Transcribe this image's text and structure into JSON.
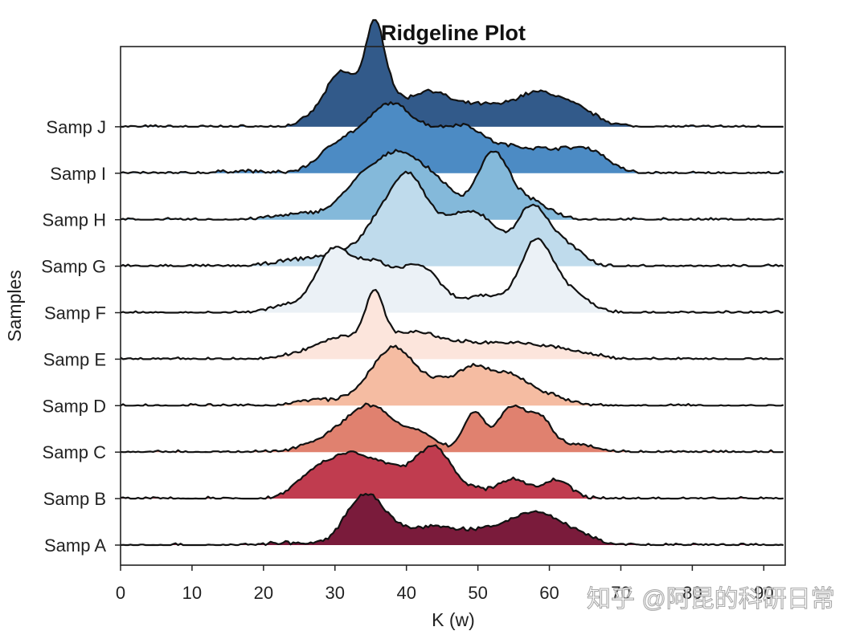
{
  "chart_data": {
    "type": "ridgeline",
    "title": "Ridgeline Plot",
    "xlabel": "K (w)",
    "ylabel": "Samples",
    "xlim": [
      0,
      93
    ],
    "xticks": [
      0,
      10,
      20,
      30,
      40,
      50,
      60,
      70,
      80,
      90
    ],
    "grid": false,
    "legend": "none",
    "series": [
      {
        "name": "Samp A",
        "color": "#7a1b3b",
        "peaks": [
          [
            34,
            1.0,
            2.6
          ],
          [
            38,
            0.25,
            3.0
          ],
          [
            44,
            0.3,
            3.0
          ],
          [
            52,
            0.33,
            4.5
          ],
          [
            58,
            0.52,
            3.0
          ],
          [
            63,
            0.25,
            3.0
          ],
          [
            23,
            0.05,
            2.5
          ]
        ]
      },
      {
        "name": "Samp B",
        "color": "#c03c4f",
        "peaks": [
          [
            31,
            0.82,
            3.5
          ],
          [
            38,
            0.6,
            4.0
          ],
          [
            44,
            0.92,
            2.2
          ],
          [
            49,
            0.2,
            2.5
          ],
          [
            55,
            0.42,
            2.0
          ],
          [
            61,
            0.4,
            2.0
          ],
          [
            26,
            0.25,
            2.0
          ]
        ]
      },
      {
        "name": "Samp C",
        "color": "#e0816f",
        "peaks": [
          [
            35,
            0.95,
            3.2
          ],
          [
            29,
            0.25,
            3.5
          ],
          [
            42,
            0.35,
            2.5
          ],
          [
            49.5,
            0.85,
            1.5
          ],
          [
            54.5,
            0.92,
            1.8
          ],
          [
            58.5,
            0.75,
            1.8
          ],
          [
            64,
            0.18,
            2.5
          ]
        ]
      },
      {
        "name": "Samp D",
        "color": "#f5bca2",
        "peaks": [
          [
            39,
            1.05,
            2.5
          ],
          [
            36,
            0.4,
            2.0
          ],
          [
            45,
            0.5,
            2.5
          ],
          [
            49.5,
            0.65,
            2.0
          ],
          [
            54,
            0.6,
            2.5
          ],
          [
            59,
            0.25,
            3.0
          ],
          [
            27,
            0.12,
            2.5
          ],
          [
            33,
            0.18,
            2.5
          ]
        ]
      },
      {
        "name": "Samp E",
        "color": "#fce5dc",
        "peaks": [
          [
            35.5,
            1.05,
            1.3
          ],
          [
            31,
            0.42,
            3.0
          ],
          [
            40,
            0.5,
            4.0
          ],
          [
            50,
            0.32,
            6.0
          ],
          [
            60,
            0.2,
            5.0
          ],
          [
            26,
            0.12,
            3.0
          ]
        ]
      },
      {
        "name": "Samp F",
        "color": "#ebf1f6",
        "peaks": [
          [
            29.5,
            1.15,
            2.2
          ],
          [
            35,
            1.05,
            3.0
          ],
          [
            42,
            0.95,
            2.8
          ],
          [
            51,
            0.35,
            3.0
          ],
          [
            58,
            1.35,
            2.2
          ],
          [
            62,
            0.5,
            3.0
          ],
          [
            24,
            0.18,
            3.0
          ]
        ]
      },
      {
        "name": "Samp G",
        "color": "#bfdbec",
        "peaks": [
          [
            40.5,
            1.35,
            2.2
          ],
          [
            37,
            0.9,
            2.5
          ],
          [
            46,
            0.95,
            3.5
          ],
          [
            51,
            0.7,
            2.5
          ],
          [
            57.5,
            1.2,
            2.2
          ],
          [
            62,
            0.45,
            2.5
          ],
          [
            32,
            0.3,
            4.0
          ],
          [
            24,
            0.1,
            3.0
          ]
        ]
      },
      {
        "name": "Samp H",
        "color": "#84b9da",
        "peaks": [
          [
            34,
            0.85,
            2.8
          ],
          [
            39,
            1.15,
            2.6
          ],
          [
            44,
            0.8,
            2.8
          ],
          [
            52,
            1.35,
            2.2
          ],
          [
            57,
            0.4,
            3.0
          ],
          [
            22,
            0.05,
            3.0
          ],
          [
            27,
            0.12,
            3.0
          ]
        ]
      },
      {
        "name": "Samp I",
        "color": "#4c8bc4",
        "peaks": [
          [
            31,
            0.65,
            3.0
          ],
          [
            37.5,
            1.3,
            3.0
          ],
          [
            44,
            0.8,
            3.5
          ],
          [
            49,
            0.65,
            2.5
          ],
          [
            54,
            0.35,
            2.5
          ],
          [
            60,
            0.5,
            4.0
          ],
          [
            66,
            0.35,
            2.5
          ],
          [
            17,
            0.05,
            3.0
          ]
        ]
      },
      {
        "name": "Samp J",
        "color": "#325a8a",
        "peaks": [
          [
            31,
            1.15,
            2.2
          ],
          [
            35.5,
            1.4,
            1.3
          ],
          [
            36.5,
            0.8,
            2.0
          ],
          [
            43,
            0.75,
            3.0
          ],
          [
            50,
            0.4,
            3.0
          ],
          [
            58,
            0.7,
            3.5
          ],
          [
            64,
            0.3,
            3.0
          ],
          [
            27,
            0.15,
            2.0
          ]
        ]
      }
    ]
  },
  "watermark": "知乎 @阿昆的科研日常"
}
